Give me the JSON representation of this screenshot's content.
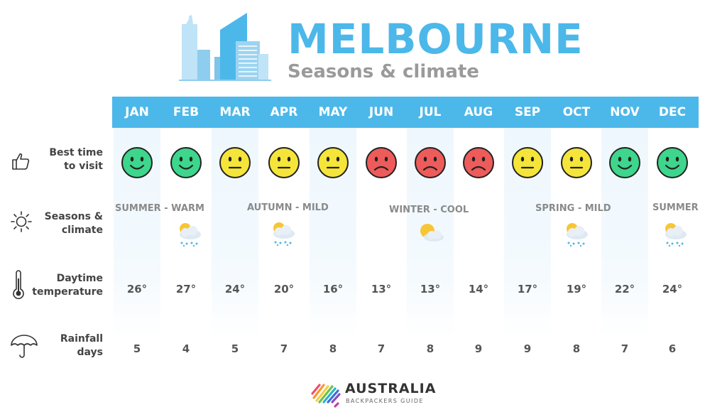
{
  "header": {
    "title": "MELBOURNE",
    "subtitle": "Seasons & climate"
  },
  "row_labels": {
    "best_time_line1": "Best time",
    "best_time_line2": "to visit",
    "seasons_line1": "Seasons &",
    "seasons_line2": "climate",
    "temp_line1": "Daytime",
    "temp_line2": "temperature",
    "rain_line1": "Rainfall",
    "rain_line2": "days"
  },
  "months": [
    "JAN",
    "FEB",
    "MAR",
    "APR",
    "MAY",
    "JUN",
    "JUL",
    "AUG",
    "SEP",
    "OCT",
    "NOV",
    "DEC"
  ],
  "best_time_rating": [
    "happy",
    "happy",
    "neutral",
    "neutral",
    "neutral",
    "sad",
    "sad",
    "sad",
    "neutral",
    "neutral",
    "happy",
    "happy"
  ],
  "seasons": [
    {
      "label": "SUMMER - WARM",
      "weather_icon": "sun-cloud-rain-icon"
    },
    {
      "label": "AUTUMN - MILD",
      "weather_icon": "sun-cloud-rain-icon"
    },
    {
      "label": "WINTER - COOL",
      "weather_icon": "sun-cloud-icon"
    },
    {
      "label": "SPRING - MILD",
      "weather_icon": "sun-cloud-rain-icon"
    },
    {
      "label": "SUMMER",
      "weather_icon": "sun-cloud-rain-icon"
    }
  ],
  "daytime_temperature": [
    "26°",
    "27°",
    "24°",
    "20°",
    "16°",
    "13°",
    "13°",
    "14°",
    "17°",
    "19°",
    "22°",
    "24°"
  ],
  "rainfall_days": [
    "5",
    "4",
    "5",
    "7",
    "8",
    "7",
    "8",
    "9",
    "9",
    "8",
    "7",
    "6"
  ],
  "colors": {
    "accent": "#4cb8ea",
    "happy": "#3dd68c",
    "neutral": "#f5e53a",
    "sad": "#ee5b5b"
  },
  "footer": {
    "brand": "AUSTRALIA",
    "tagline": "BACKPACKERS GUIDE"
  }
}
